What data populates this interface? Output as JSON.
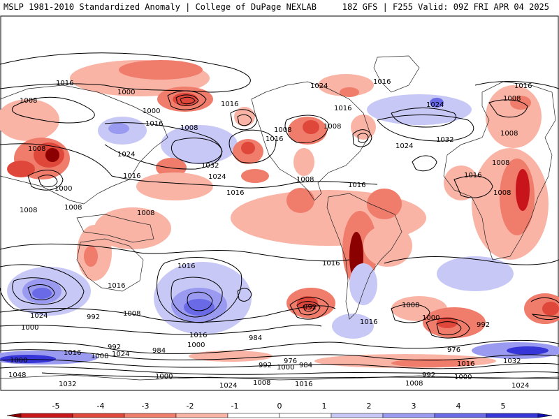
{
  "header": {
    "left_title": "MSLP 1981-2010 Standardized Anomaly | College of DuPage NEXLAB",
    "right_title": "18Z GFS | F255 Valid: 09Z FRI APR 04 2025"
  },
  "colorbar": {
    "tick_labels": [
      "-5",
      "-4",
      "-3",
      "-2",
      "-1",
      "0",
      "1",
      "2",
      "3",
      "4",
      "5"
    ],
    "colors": [
      "#8b0000",
      "#c8141b",
      "#e0473b",
      "#f07c6b",
      "#f9b4a6",
      "#ffffff",
      "#ffffff",
      "#c8c8f6",
      "#9a9af0",
      "#6a6ae6",
      "#3535d8",
      "#1010b0"
    ]
  },
  "isobars": {
    "labels": [
      "1016",
      "1008",
      "1000",
      "1000",
      "1008",
      "1016",
      "1016",
      "1008",
      "1024",
      "1016",
      "1008",
      "1032",
      "1024",
      "1016",
      "1016",
      "1000",
      "1008",
      "1008",
      "1008",
      "1016",
      "1024",
      "1016",
      "1016",
      "1008",
      "1024",
      "1032",
      "1016",
      "1024",
      "1008",
      "1008",
      "1008",
      "1016",
      "1008",
      "1008",
      "1016",
      "1024",
      "992",
      "1000",
      "1016",
      "992",
      "1016",
      "1016",
      "1000",
      "1008",
      "984",
      "992",
      "1000",
      "984",
      "992",
      "976",
      "984",
      "1000",
      "1008",
      "1016",
      "1024",
      "1032",
      "1048",
      "1000",
      "1016",
      "1008",
      "1024",
      "976",
      "1000",
      "992",
      "1008",
      "1024",
      "1032",
      "1016",
      "992",
      "1000",
      "1016",
      "1008"
    ]
  },
  "anomaly_colors": {
    "neg_1": "#f9b4a6",
    "neg_2": "#f07c6b",
    "neg_3": "#e0473b",
    "neg_4": "#c8141b",
    "pos_1": "#c8c8f6",
    "pos_2": "#9a9af0",
    "pos_3": "#6a6ae6",
    "pos_4": "#3535d8"
  }
}
